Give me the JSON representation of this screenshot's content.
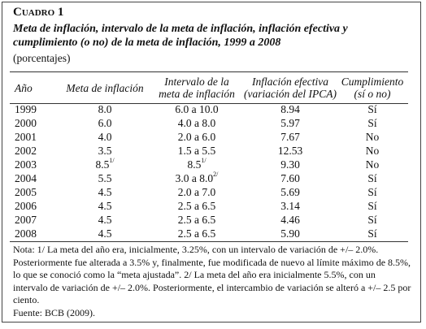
{
  "header": {
    "label": "Cuadro 1",
    "title": "Meta de inflación, intervalo de la meta de inflación, inflación efectiva y cumplimiento (o no) de la meta de inflación, 1999 a 2008",
    "subtitle": "(porcentajes)"
  },
  "table": {
    "columns": [
      [
        "Año"
      ],
      [
        "Meta de inflación"
      ],
      [
        "Intervalo de la",
        "meta de inflación"
      ],
      [
        "Inflación efectiva",
        "(variación del IPCA)"
      ],
      [
        "Cumplimiento",
        "(sí o no)"
      ]
    ],
    "rows": [
      [
        "1999",
        "8.0",
        "6.0 a 10.0",
        "8.94",
        "Sí"
      ],
      [
        "2000",
        "6.0",
        "4.0 a 8.0",
        "5.97",
        "Sí"
      ],
      [
        "2001",
        "4.0",
        "2.0 a 6.0",
        "7.67",
        "No"
      ],
      [
        "2002",
        "3.5",
        "1.5 a 5.5",
        "12.53",
        "No"
      ],
      [
        "2003",
        {
          "text": "8.5",
          "note": "1/"
        },
        {
          "text": "8.5",
          "note": "1/"
        },
        "9.30",
        "No"
      ],
      [
        "2004",
        "5.5",
        {
          "text": "3.0 a 8.0",
          "note": "2/"
        },
        "7.60",
        "Sí"
      ],
      [
        "2005",
        "4.5",
        "2.0 a 7.0",
        "5.69",
        "Sí"
      ],
      [
        "2006",
        "4.5",
        "2.5 a 6.5",
        "3.14",
        "Sí"
      ],
      [
        "2007",
        "4.5",
        "2.5 a 6.5",
        "4.46",
        "Sí"
      ],
      [
        "2008",
        "4.5",
        "2.5 a 6.5",
        "5.90",
        "Sí"
      ]
    ]
  },
  "notes": {
    "text": "Nota: 1/ La meta del año era, inicialmente, 3.25%, con un intervalo de variación de +/– 2.0%. Posteriormente fue alterada a 3.5% y, finalmente, fue modificada de nuevo al límite máximo de 8.5%, lo que se conoció como la “meta ajustada”. 2/ La meta del año era inicialmente 5.5%, con un intervalo de variación de +/– 2.0%. Posteriormente, el intercambio de variación se alteró a +/– 2.5 por ciento.",
    "source": "Fuente: BCB (2009)."
  }
}
